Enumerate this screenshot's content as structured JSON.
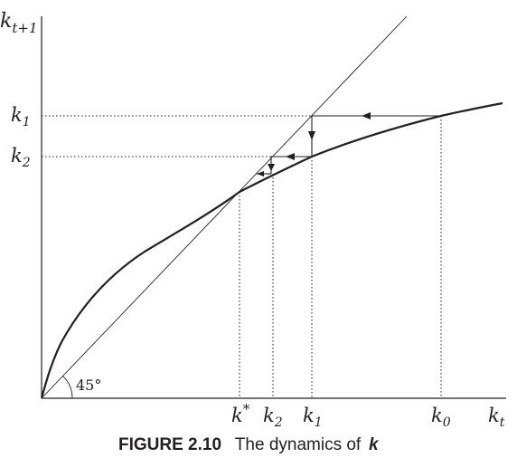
{
  "figure": {
    "caption_label": "FIGURE 2.10",
    "caption_text": "The dynamics of",
    "caption_var": "k"
  },
  "axes": {
    "y_label_main": "k",
    "y_label_sub": "t+1",
    "x_label_main": "k",
    "x_label_sub": "t",
    "angle_label": "45°"
  },
  "y_ticks": [
    {
      "main": "k",
      "sub": "1"
    },
    {
      "main": "k",
      "sub": "2"
    }
  ],
  "x_ticks": [
    {
      "main": "k",
      "sub": "",
      "sup": "*"
    },
    {
      "main": "k",
      "sub": "2",
      "sup": ""
    },
    {
      "main": "k",
      "sub": "1",
      "sup": ""
    },
    {
      "main": "k",
      "sub": "0",
      "sup": ""
    }
  ],
  "colors": {
    "ink": "#231f20",
    "background": "#ffffff"
  }
}
